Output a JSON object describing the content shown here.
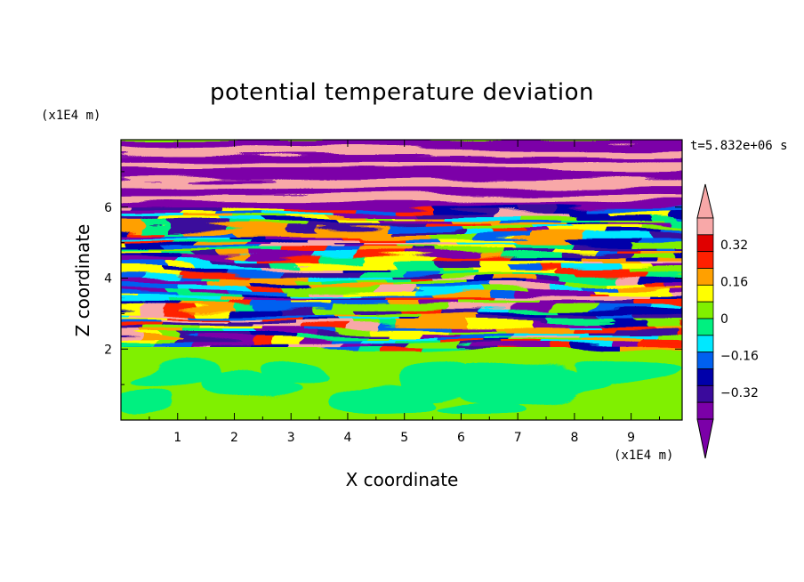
{
  "chart_data": {
    "type": "heatmap",
    "title": "potential temperature deviation",
    "xlabel": "X coordinate",
    "ylabel": "Z coordinate",
    "x_unit": "(x1E4 m)",
    "y_unit": "(x1E4 m)",
    "time_label": "t=5.832e+06 s",
    "xlim": [
      0,
      9.9
    ],
    "ylim": [
      0,
      7.9
    ],
    "x_ticks": [
      "1",
      "2",
      "3",
      "4",
      "5",
      "6",
      "7",
      "8",
      "9"
    ],
    "y_ticks": [
      "2",
      "4",
      "6"
    ],
    "colorbar": {
      "labels": [
        "0.32",
        "0.16",
        "0",
        "−0.16",
        "−0.32"
      ],
      "label_values": [
        0.32,
        0.16,
        0,
        -0.16,
        -0.32
      ],
      "levels": [
        -0.4,
        -0.32,
        -0.24,
        -0.16,
        -0.08,
        0,
        0.08,
        0.16,
        0.24,
        0.32,
        0.4
      ],
      "colors": [
        "#7b00a8",
        "#3a0a9c",
        "#0000aa",
        "#0060f0",
        "#00e8ff",
        "#00f080",
        "#80f000",
        "#ffff00",
        "#ffa000",
        "#ff2000",
        "#e00000",
        "#f8a8a8"
      ],
      "over_color": "#f8a8a8",
      "under_color": "#7b00a8"
    }
  }
}
